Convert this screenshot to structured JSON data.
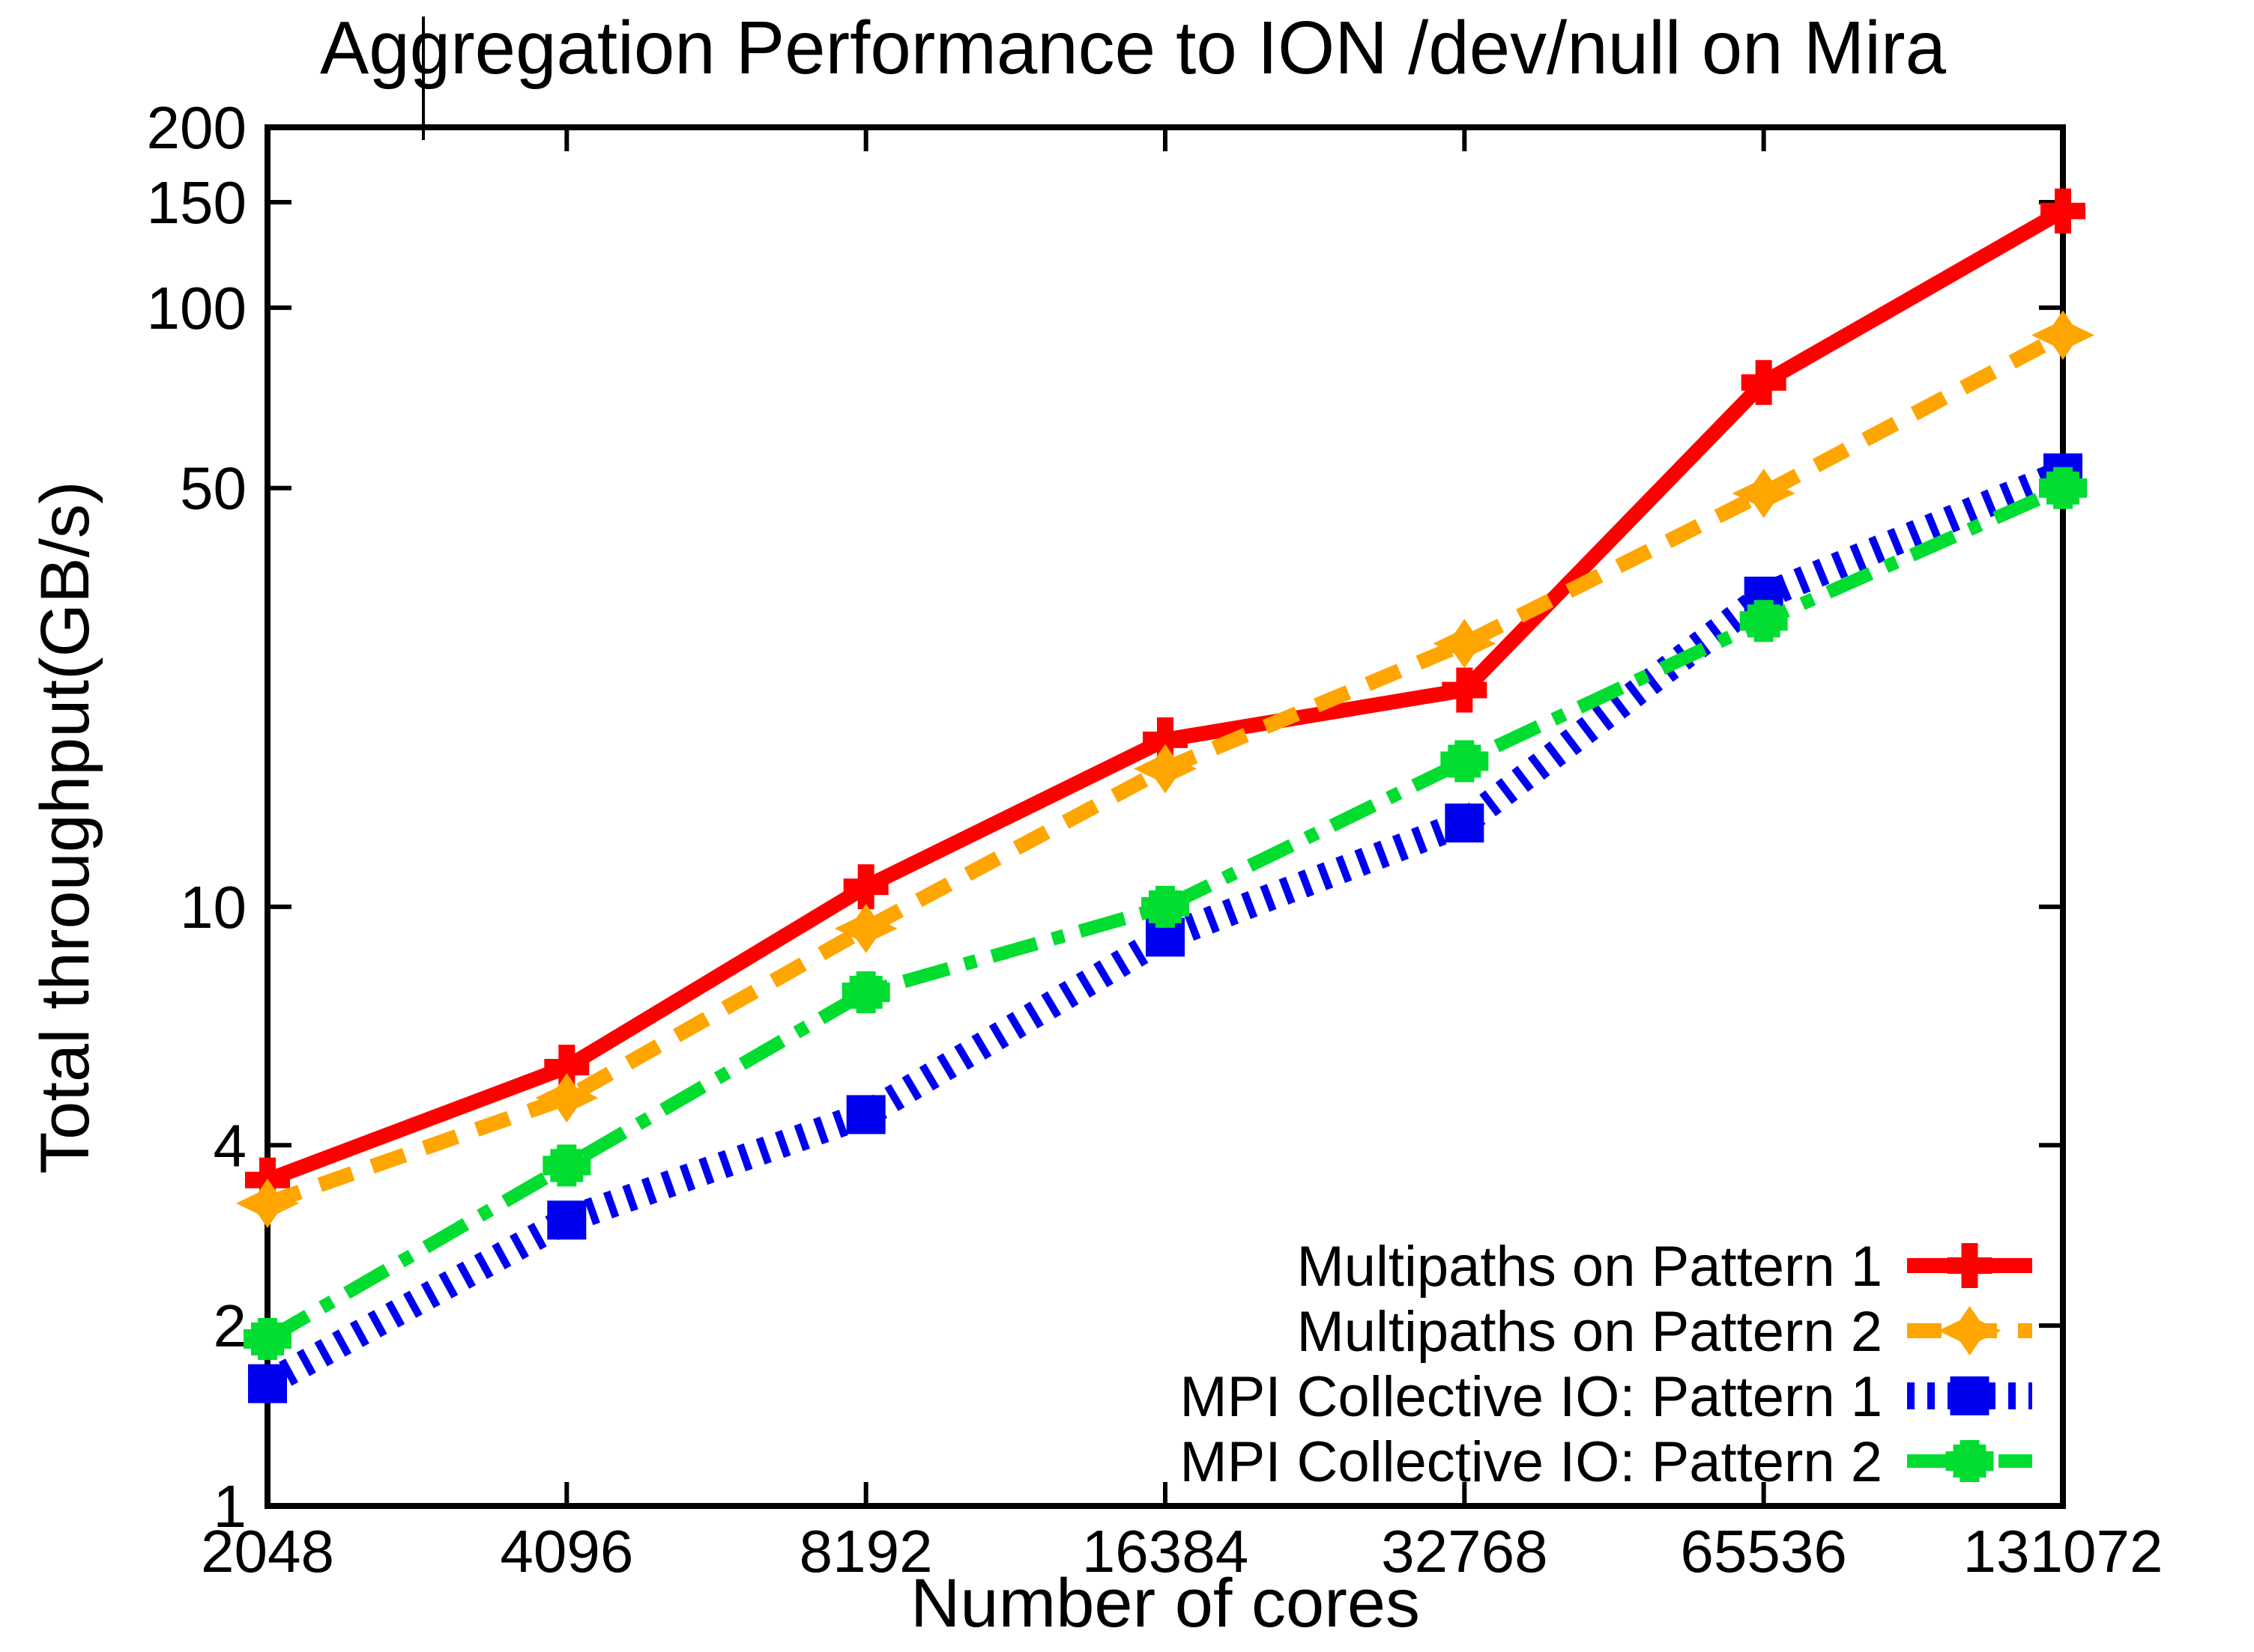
{
  "chart_data": {
    "type": "line",
    "title": "Aggregation Performance to ION /dev/null on Mira",
    "xlabel": "Number of cores",
    "ylabel": "Total throughput(GB/s)",
    "x_scale": "log2",
    "y_scale": "log10",
    "xlim": [
      2048,
      131072
    ],
    "ylim": [
      1,
      200
    ],
    "grid": false,
    "legend_position": "bottom-right",
    "x_ticks": [
      2048,
      4096,
      8192,
      16384,
      32768,
      65536,
      131072
    ],
    "y_ticks": [
      1,
      2,
      4,
      10,
      50,
      100,
      150,
      200
    ],
    "x": [
      2048,
      4096,
      8192,
      16384,
      32768,
      65536,
      131072
    ],
    "series": [
      {
        "name": "Multipaths on Pattern 1",
        "color": "#ff0000",
        "line_style": "solid",
        "marker": "plus",
        "values": [
          3.5,
          5.4,
          10.8,
          19,
          23,
          75,
          145
        ]
      },
      {
        "name": "Multipaths on Pattern 2",
        "color": "#ffa500",
        "line_style": "dashed",
        "marker": "star",
        "values": [
          3.2,
          4.8,
          9.2,
          17,
          27.5,
          49,
          90
        ]
      },
      {
        "name": "MPI Collective IO: Pattern 1",
        "color": "#0000f0",
        "line_style": "picket-dotted",
        "marker": "square",
        "values": [
          1.6,
          3.0,
          4.5,
          8.9,
          13.8,
          33,
          53
        ]
      },
      {
        "name": "MPI Collective IO: Pattern 2",
        "color": "#00dd30",
        "line_style": "dash-dot",
        "marker": "fat-plus",
        "values": [
          1.9,
          3.7,
          7.2,
          10,
          17.5,
          30,
          50
        ]
      }
    ]
  }
}
